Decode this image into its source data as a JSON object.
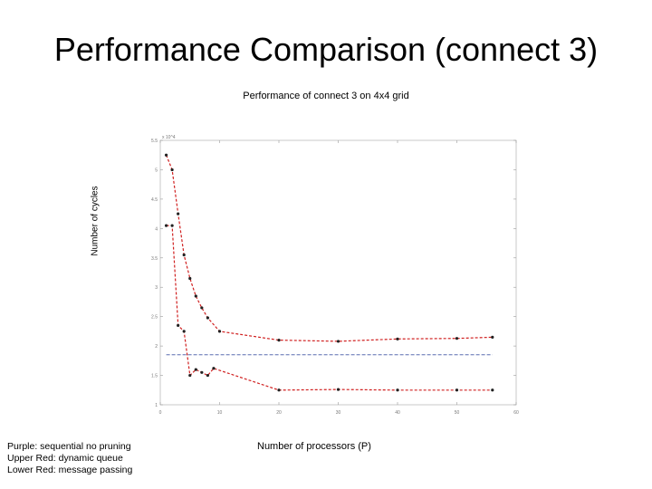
{
  "slide": {
    "title": "Performance Comparison (connect 3)"
  },
  "notes": {
    "lines": [
      "Purple: sequential no pruning",
      "Upper Red: dynamic queue",
      "Lower Red: message passing"
    ]
  },
  "chart_data": {
    "type": "line",
    "title": "Performance of connect 3 on 4x4 grid",
    "xlabel": "Number of processors (P)",
    "ylabel": "Number of cycles",
    "y_multiplier": "x 10^4",
    "xlim": [
      0,
      60
    ],
    "ylim": [
      1,
      5.5
    ],
    "xticks": [
      0,
      10,
      20,
      30,
      40,
      50,
      60
    ],
    "yticks": [
      1,
      1.5,
      2,
      2.5,
      3,
      3.5,
      4,
      4.5,
      5,
      5.5
    ],
    "grid": false,
    "colors": {
      "purple": "#5a6fb0",
      "red": "#d02020",
      "marker": "#222222"
    },
    "series": [
      {
        "name": "Purple",
        "x": [
          1,
          56
        ],
        "y": [
          1.85,
          1.85
        ]
      },
      {
        "name": "Upper Red",
        "x": [
          1,
          2,
          3,
          4,
          5,
          6,
          7,
          8,
          10,
          20,
          30,
          40,
          50,
          56
        ],
        "y": [
          5.25,
          5.0,
          4.25,
          3.55,
          3.15,
          2.85,
          2.65,
          2.48,
          2.25,
          2.1,
          2.08,
          2.12,
          2.13,
          2.15
        ]
      },
      {
        "name": "Lower Red",
        "x": [
          1,
          2,
          3,
          4,
          5,
          6,
          7,
          8,
          9,
          20,
          30,
          40,
          50,
          56
        ],
        "y": [
          4.05,
          4.05,
          2.35,
          2.25,
          1.5,
          1.6,
          1.55,
          1.5,
          1.62,
          1.25,
          1.26,
          1.25,
          1.25,
          1.25
        ]
      }
    ]
  }
}
